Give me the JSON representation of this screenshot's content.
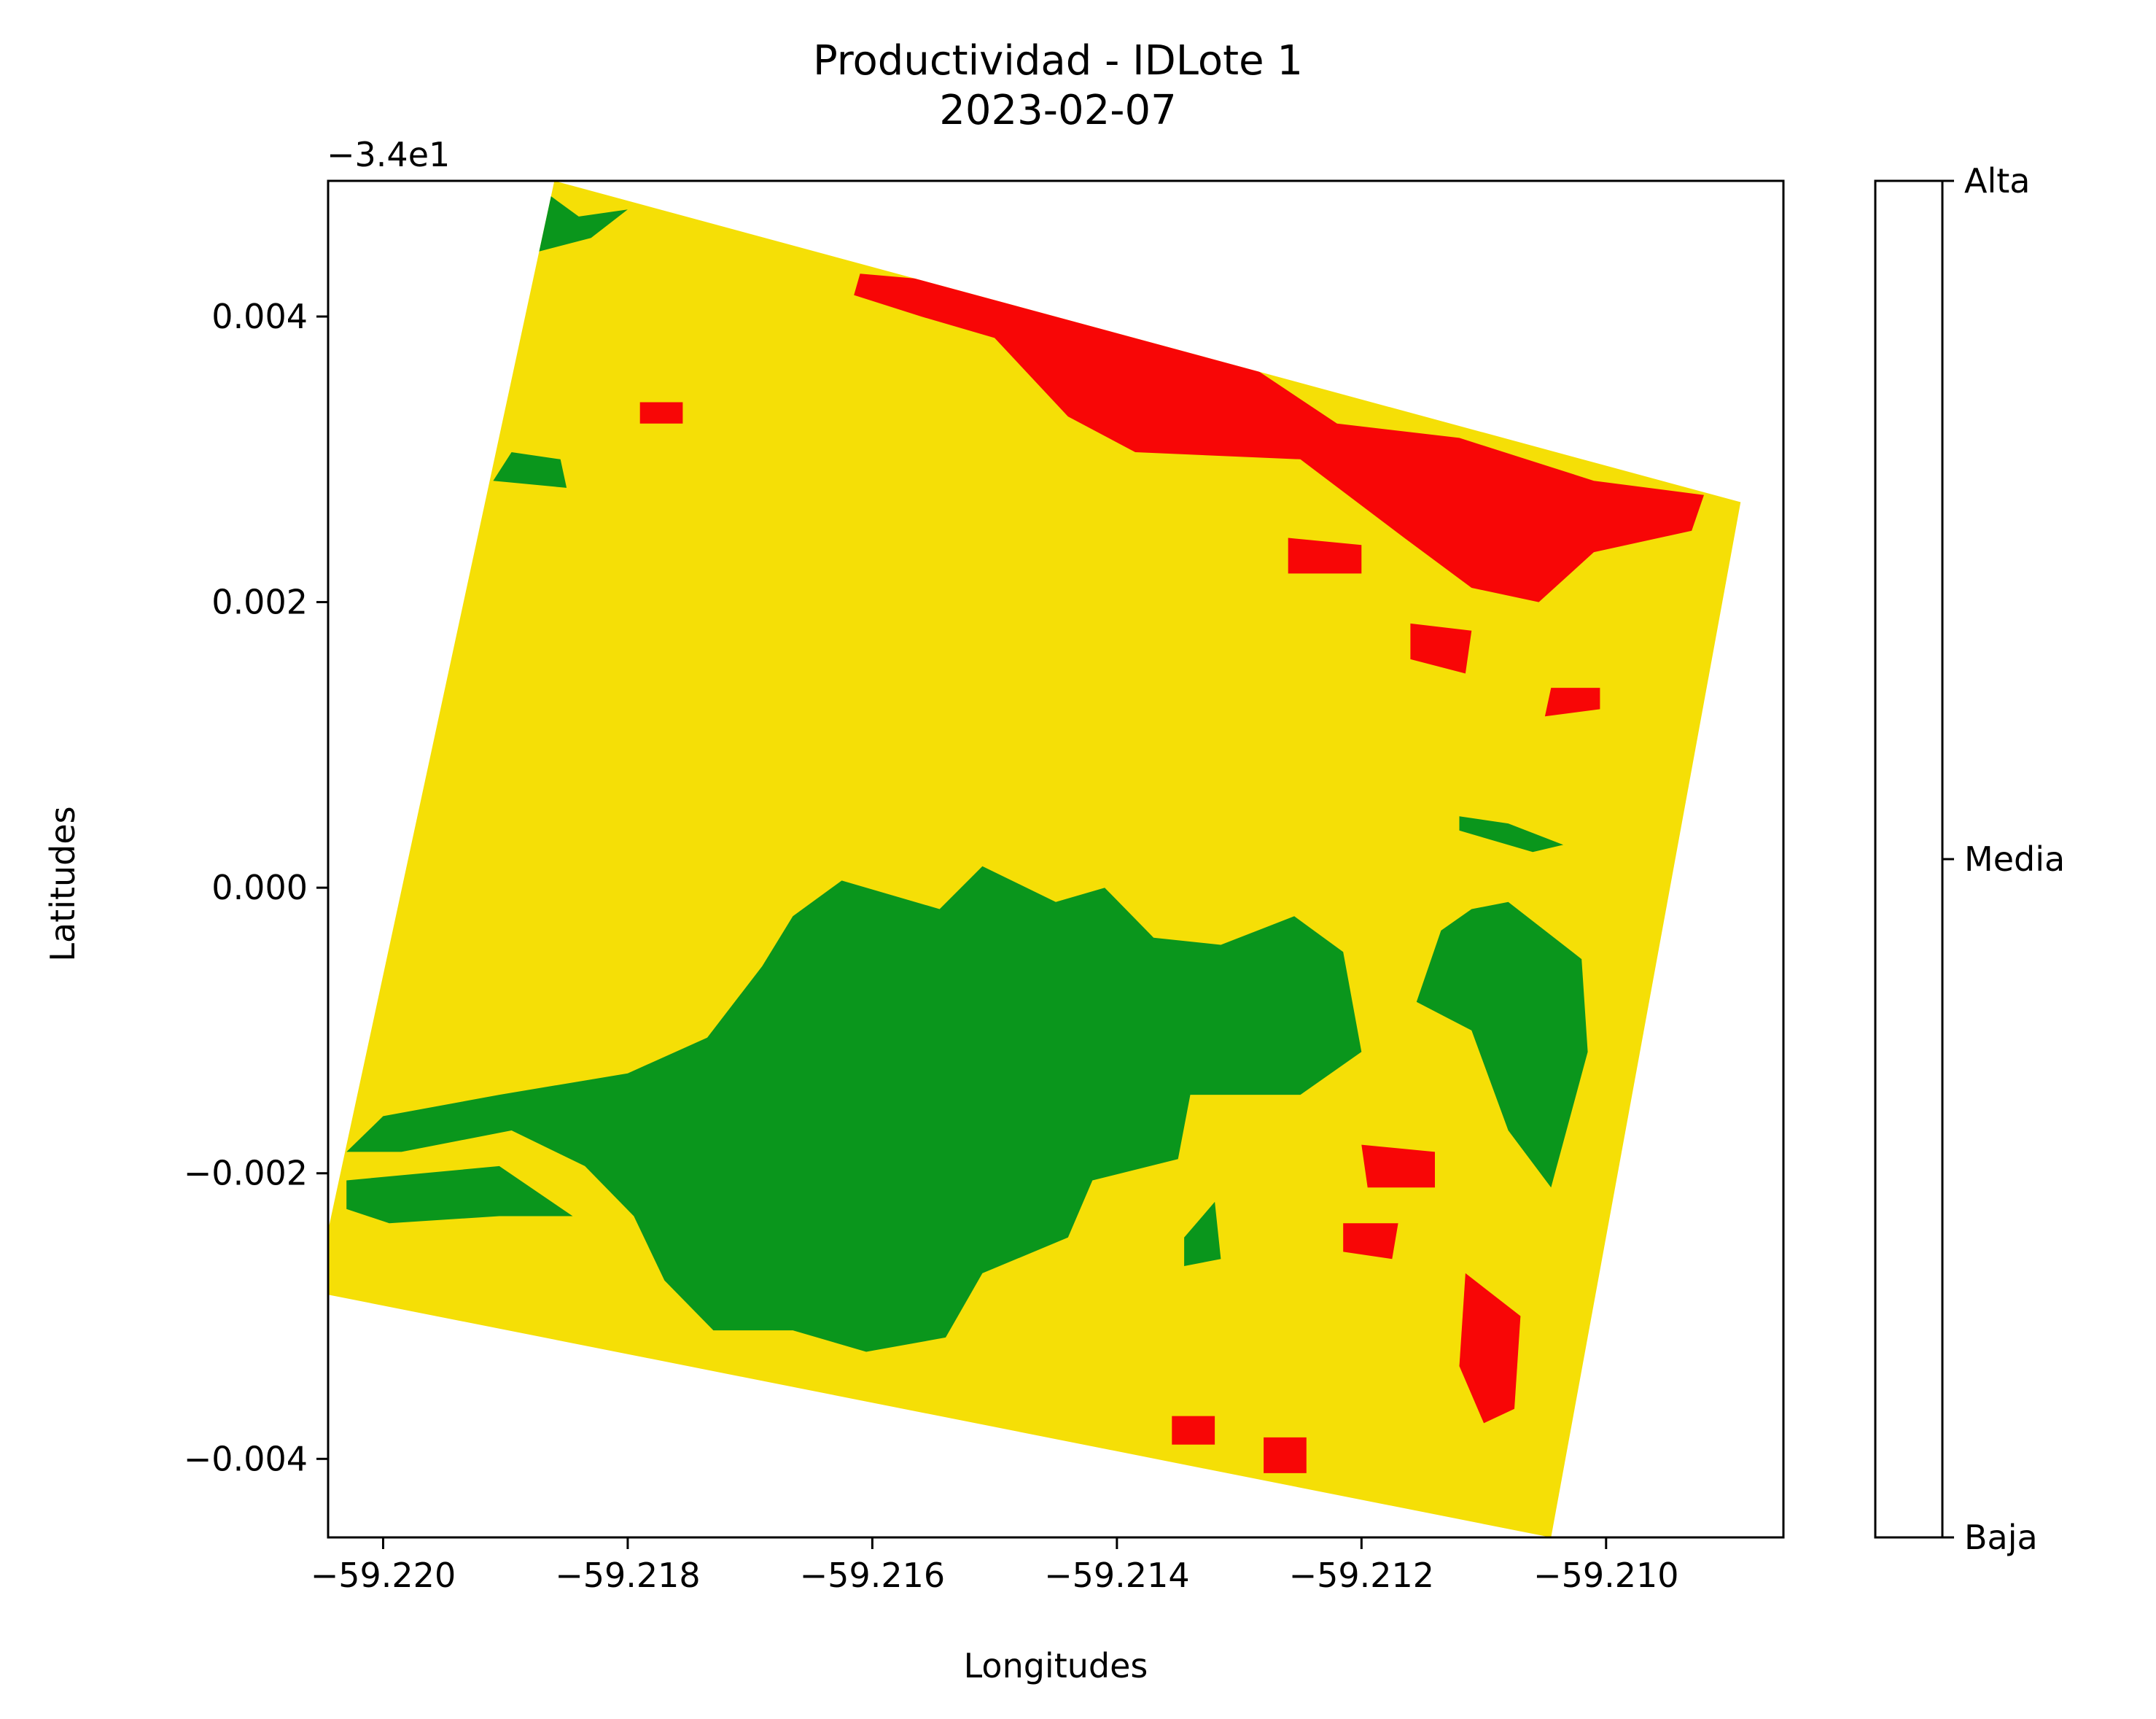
{
  "chart_data": {
    "type": "heatmap",
    "title_line1": "Productividad - IDLote 1",
    "title_line2": "2023-02-07",
    "xlabel": "Longitudes",
    "ylabel": "Latitudes",
    "y_offset_text": "−3.4e1",
    "xlim": [
      -59.22045,
      -59.20855
    ],
    "ylim": [
      -0.00455,
      0.00495
    ],
    "x_ticks": [
      {
        "value": -59.22,
        "label": "−59.220"
      },
      {
        "value": -59.218,
        "label": "−59.218"
      },
      {
        "value": -59.216,
        "label": "−59.216"
      },
      {
        "value": -59.214,
        "label": "−59.214"
      },
      {
        "value": -59.212,
        "label": "−59.212"
      },
      {
        "value": -59.21,
        "label": "−59.210"
      }
    ],
    "y_ticks": [
      {
        "value": 0.004,
        "label": "0.004"
      },
      {
        "value": 0.002,
        "label": "0.002"
      },
      {
        "value": 0.0,
        "label": "0.000"
      },
      {
        "value": -0.002,
        "label": "−0.002"
      },
      {
        "value": -0.004,
        "label": "−0.004"
      }
    ],
    "field_outline": [
      [
        -59.2186,
        0.00495
      ],
      [
        -59.2089,
        0.0027
      ],
      [
        -59.21045,
        -0.00455
      ],
      [
        -59.22045,
        -0.00285
      ],
      [
        -59.22045,
        -0.0024
      ]
    ],
    "classes": [
      {
        "label": "Baja",
        "color": "#f80606"
      },
      {
        "label": "Media",
        "color": "#f5df06"
      },
      {
        "label": "Alta",
        "color": "#0a961c"
      }
    ],
    "zones": [
      {
        "class": "Alta",
        "polygon": [
          [
            -59.21625,
            5e-05
          ],
          [
            -59.21545,
            -0.00015
          ],
          [
            -59.2151,
            0.00015
          ],
          [
            -59.2145,
            -0.0001
          ],
          [
            -59.2141,
            0.0
          ],
          [
            -59.2137,
            -0.00035
          ],
          [
            -59.21315,
            -0.0004
          ],
          [
            -59.21255,
            -0.0002
          ],
          [
            -59.21215,
            -0.00045
          ],
          [
            -59.212,
            -0.00115
          ],
          [
            -59.2125,
            -0.00145
          ],
          [
            -59.2134,
            -0.00145
          ],
          [
            -59.2135,
            -0.0019
          ],
          [
            -59.2142,
            -0.00205
          ],
          [
            -59.2144,
            -0.00245
          ],
          [
            -59.2151,
            -0.0027
          ],
          [
            -59.2154,
            -0.00315
          ],
          [
            -59.21605,
            -0.00325
          ],
          [
            -59.21665,
            -0.0031
          ],
          [
            -59.2173,
            -0.0031
          ],
          [
            -59.2177,
            -0.00275
          ],
          [
            -59.21795,
            -0.0023
          ],
          [
            -59.21835,
            -0.00195
          ],
          [
            -59.21895,
            -0.0017
          ],
          [
            -59.21985,
            -0.00185
          ],
          [
            -59.2203,
            -0.00185
          ],
          [
            -59.22,
            -0.0016
          ],
          [
            -59.21905,
            -0.00145
          ],
          [
            -59.218,
            -0.0013
          ],
          [
            -59.21735,
            -0.00105
          ],
          [
            -59.2169,
            -0.00055
          ],
          [
            -59.21665,
            -0.0002
          ]
        ]
      },
      {
        "class": "Alta",
        "polygon": [
          [
            -59.2203,
            -0.00205
          ],
          [
            -59.21905,
            -0.00195
          ],
          [
            -59.21845,
            -0.0023
          ],
          [
            -59.21905,
            -0.0023
          ],
          [
            -59.21995,
            -0.00235
          ],
          [
            -59.2203,
            -0.00225
          ]
        ]
      },
      {
        "class": "Alta",
        "polygon": [
          [
            -59.2108,
            -0.0001
          ],
          [
            -59.2102,
            -0.0005
          ],
          [
            -59.21015,
            -0.00115
          ],
          [
            -59.21045,
            -0.0021
          ],
          [
            -59.2108,
            -0.0017
          ],
          [
            -59.2111,
            -0.001
          ],
          [
            -59.21155,
            -0.0008
          ],
          [
            -59.21135,
            -0.0003
          ],
          [
            -59.2111,
            -0.00015
          ]
        ]
      },
      {
        "class": "Alta",
        "polygon": [
          [
            -59.2188,
            0.00495
          ],
          [
            -59.2184,
            0.0047
          ],
          [
            -59.218,
            0.00475
          ],
          [
            -59.2183,
            0.00455
          ],
          [
            -59.21875,
            0.00445
          ],
          [
            -59.21895,
            0.0045
          ]
        ]
      },
      {
        "class": "Alta",
        "polygon": [
          [
            -59.21895,
            0.00305
          ],
          [
            -59.21855,
            0.003
          ],
          [
            -59.2185,
            0.0028
          ],
          [
            -59.2191,
            0.00285
          ]
        ]
      },
      {
        "class": "Alta",
        "polygon": [
          [
            -59.2112,
            0.0004
          ],
          [
            -59.2106,
            0.00025
          ],
          [
            -59.21035,
            0.0003
          ],
          [
            -59.2108,
            0.00045
          ],
          [
            -59.2112,
            0.0005
          ]
        ]
      },
      {
        "class": "Alta",
        "polygon": [
          [
            -59.21345,
            -0.00245
          ],
          [
            -59.2132,
            -0.0022
          ],
          [
            -59.21315,
            -0.0026
          ],
          [
            -59.21345,
            -0.00265
          ]
        ]
      },
      {
        "class": "Baja",
        "polygon": [
          [
            -59.2161,
            0.0043
          ],
          [
            -59.21475,
            0.0042
          ],
          [
            -59.2139,
            0.0039
          ],
          [
            -59.2129,
            0.00365
          ],
          [
            -59.2122,
            0.00325
          ],
          [
            -59.2112,
            0.00315
          ],
          [
            -59.2101,
            0.00285
          ],
          [
            -59.2092,
            0.00275
          ],
          [
            -59.2093,
            0.0025
          ],
          [
            -59.2101,
            0.00235
          ],
          [
            -59.21055,
            0.002
          ],
          [
            -59.2111,
            0.0021
          ],
          [
            -59.21165,
            0.00245
          ],
          [
            -59.2125,
            0.003
          ],
          [
            -59.21385,
            0.00305
          ],
          [
            -59.2144,
            0.0033
          ],
          [
            -59.215,
            0.00385
          ],
          [
            -59.2156,
            0.004
          ],
          [
            -59.21615,
            0.00415
          ]
        ]
      },
      {
        "class": "Baja",
        "polygon": [
          [
            -59.2126,
            0.00245
          ],
          [
            -59.212,
            0.0024
          ],
          [
            -59.212,
            0.0022
          ],
          [
            -59.2126,
            0.0022
          ]
        ]
      },
      {
        "class": "Baja",
        "polygon": [
          [
            -59.2116,
            0.00185
          ],
          [
            -59.2111,
            0.0018
          ],
          [
            -59.21115,
            0.0015
          ],
          [
            -59.2116,
            0.0016
          ]
        ]
      },
      {
        "class": "Baja",
        "polygon": [
          [
            -59.21045,
            0.0014
          ],
          [
            -59.21005,
            0.0014
          ],
          [
            -59.21005,
            0.00125
          ],
          [
            -59.2105,
            0.0012
          ]
        ]
      },
      {
        "class": "Baja",
        "polygon": [
          [
            -59.212,
            -0.0018
          ],
          [
            -59.2114,
            -0.00185
          ],
          [
            -59.2114,
            -0.0021
          ],
          [
            -59.21195,
            -0.0021
          ]
        ]
      },
      {
        "class": "Baja",
        "polygon": [
          [
            -59.21115,
            -0.0027
          ],
          [
            -59.2107,
            -0.003
          ],
          [
            -59.21075,
            -0.00365
          ],
          [
            -59.211,
            -0.00375
          ],
          [
            -59.2112,
            -0.00335
          ]
        ]
      },
      {
        "class": "Baja",
        "polygon": [
          [
            -59.21215,
            -0.00235
          ],
          [
            -59.2117,
            -0.00235
          ],
          [
            -59.21175,
            -0.0026
          ],
          [
            -59.21215,
            -0.00255
          ]
        ]
      },
      {
        "class": "Baja",
        "polygon": [
          [
            -59.21355,
            -0.0037
          ],
          [
            -59.2132,
            -0.0037
          ],
          [
            -59.2132,
            -0.0039
          ],
          [
            -59.21355,
            -0.0039
          ]
        ]
      },
      {
        "class": "Baja",
        "polygon": [
          [
            -59.2128,
            -0.00385
          ],
          [
            -59.21245,
            -0.00385
          ],
          [
            -59.21245,
            -0.0041
          ],
          [
            -59.2128,
            -0.0041
          ]
        ]
      },
      {
        "class": "Baja",
        "polygon": [
          [
            -59.2179,
            0.0034
          ],
          [
            -59.21755,
            0.0034
          ],
          [
            -59.21755,
            0.00325
          ],
          [
            -59.2179,
            0.00325
          ]
        ]
      }
    ]
  }
}
